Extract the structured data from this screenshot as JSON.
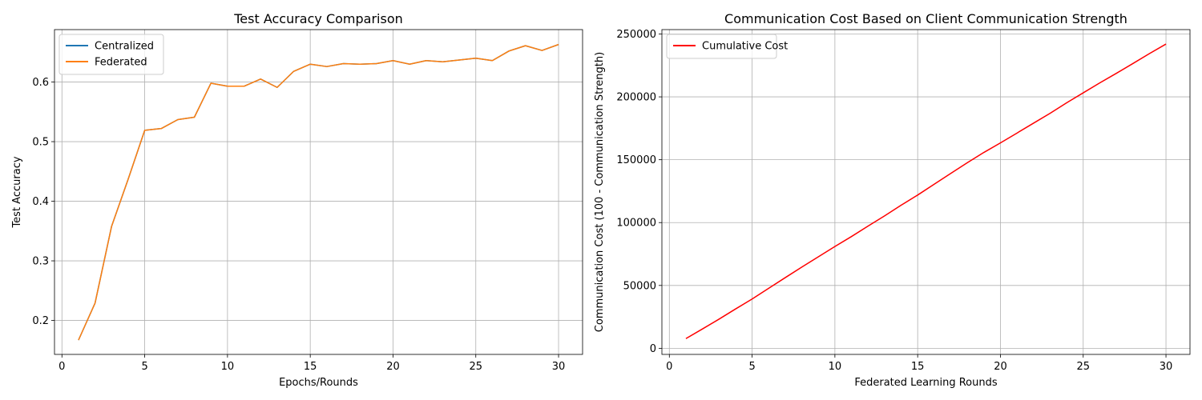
{
  "chart_data": [
    {
      "type": "line",
      "title": "Test Accuracy Comparison",
      "xlabel": "Epochs/Rounds",
      "ylabel": "Test Accuracy",
      "xlim": [
        -0.45,
        31.45
      ],
      "ylim": [
        0.143,
        0.688
      ],
      "xticks": [
        0,
        5,
        10,
        15,
        20,
        25,
        30
      ],
      "xtick_labels": [
        "0",
        "5",
        "10",
        "15",
        "20",
        "25",
        "30"
      ],
      "yticks": [
        0.2,
        0.3,
        0.4,
        0.5,
        0.6
      ],
      "ytick_labels": [
        "0.2",
        "0.3",
        "0.4",
        "0.5",
        "0.6"
      ],
      "grid": true,
      "legend": "upper left",
      "x": [
        1,
        2,
        3,
        4,
        5,
        6,
        7,
        8,
        9,
        10,
        11,
        12,
        13,
        14,
        15,
        16,
        17,
        18,
        19,
        20,
        21,
        22,
        23,
        24,
        25,
        26,
        27,
        28,
        29,
        30
      ],
      "series": [
        {
          "name": "Centralized",
          "color": "#1f77b4",
          "values": [
            0.167,
            0.229,
            0.358,
            0.437,
            0.519,
            0.522,
            0.537,
            0.541,
            0.598,
            0.593,
            0.593,
            0.605,
            0.591,
            0.618,
            0.63,
            0.626,
            0.631,
            0.63,
            0.631,
            0.636,
            0.63,
            0.636,
            0.634,
            0.637,
            0.64,
            0.636,
            0.652,
            0.661,
            0.653,
            0.663
          ]
        },
        {
          "name": "Federated",
          "color": "#ff7f0e",
          "values": [
            0.167,
            0.229,
            0.358,
            0.437,
            0.519,
            0.522,
            0.537,
            0.541,
            0.598,
            0.593,
            0.593,
            0.605,
            0.591,
            0.618,
            0.63,
            0.626,
            0.631,
            0.63,
            0.631,
            0.636,
            0.63,
            0.636,
            0.634,
            0.637,
            0.64,
            0.636,
            0.652,
            0.661,
            0.653,
            0.663
          ]
        }
      ]
    },
    {
      "type": "line",
      "title": "Communication Cost Based on Client Communication Strength",
      "xlabel": "Federated Learning Rounds",
      "ylabel": "Communication Cost (100 - Communication Strength)",
      "xlim": [
        -0.45,
        31.45
      ],
      "ylim": [
        -4850,
        253500
      ],
      "xticks": [
        0,
        5,
        10,
        15,
        20,
        25,
        30
      ],
      "xtick_labels": [
        "0",
        "5",
        "10",
        "15",
        "20",
        "25",
        "30"
      ],
      "yticks": [
        0,
        50000,
        100000,
        150000,
        200000,
        250000
      ],
      "ytick_labels": [
        "0",
        "50000",
        "100000",
        "150000",
        "200000",
        "250000"
      ],
      "grid": true,
      "legend": "upper left",
      "x": [
        1,
        2,
        3,
        4,
        5,
        6,
        7,
        8,
        9,
        10,
        11,
        12,
        13,
        14,
        15,
        16,
        17,
        18,
        19,
        20,
        21,
        22,
        23,
        24,
        25,
        26,
        27,
        28,
        29,
        30
      ],
      "series": [
        {
          "name": "Cumulative Cost",
          "color": "#ff0000",
          "values": [
            7700,
            15400,
            23200,
            31300,
            39200,
            47700,
            56200,
            64600,
            72800,
            81000,
            88900,
            97200,
            105300,
            113800,
            121900,
            130500,
            139100,
            147600,
            155800,
            163400,
            171200,
            179100,
            186900,
            195300,
            203200,
            211100,
            218700,
            226500,
            234400,
            242000
          ]
        }
      ]
    }
  ]
}
